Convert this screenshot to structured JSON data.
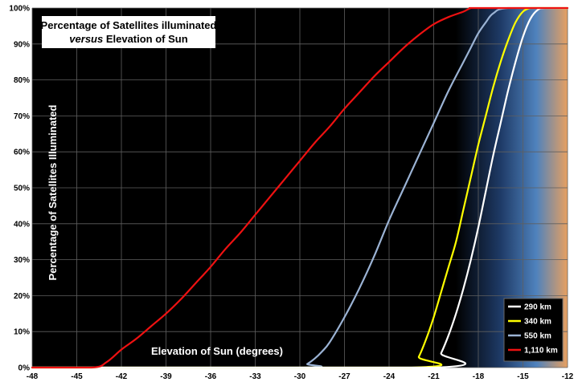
{
  "chart_data": {
    "type": "line",
    "title_line1": "Percentage of Satellites illuminated",
    "title_line2_emph": "versus",
    "title_line2_rest": " Elevation of Sun",
    "xlabel": "Elevation of Sun (degrees)",
    "ylabel": "Percentage of Satellites Illuminated",
    "xlim": [
      -48,
      -12
    ],
    "ylim": [
      0,
      100
    ],
    "xticks": [
      -48,
      -45,
      -42,
      -39,
      -36,
      -33,
      -30,
      -27,
      -24,
      -21,
      -18,
      -15,
      -12
    ],
    "yticks": [
      0,
      10,
      20,
      30,
      40,
      50,
      60,
      70,
      80,
      90,
      100
    ],
    "ytick_suffix": "%",
    "grid": true,
    "legend_position": "bottom-right",
    "background_color": "#000000",
    "twilight_gradient": [
      "#000000",
      "#1e3a66",
      "#4f82bd",
      "#e8a060"
    ],
    "series": [
      {
        "name": "290 km",
        "color": "#ffffff",
        "x": [
          -48,
          -21,
          -20.5,
          -20,
          -19.5,
          -19,
          -18.5,
          -18,
          -17.5,
          -17,
          -16.5,
          -16,
          -15.5,
          -15,
          -14.5,
          -14,
          -13.5,
          -12
        ],
        "y": [
          0,
          0,
          4,
          9,
          15,
          22,
          30,
          39,
          49,
          59,
          68,
          77,
          85,
          92,
          97,
          99.5,
          100,
          100
        ]
      },
      {
        "name": "340 km",
        "color": "#ffff00",
        "x": [
          -48,
          -22.5,
          -22,
          -21.5,
          -21,
          -20.5,
          -20,
          -19.5,
          -19,
          -18.5,
          -18,
          -17.5,
          -17,
          -16.5,
          -16,
          -15.5,
          -15,
          -14.5,
          -14,
          -12
        ],
        "y": [
          0,
          0,
          3,
          8,
          14,
          21,
          28,
          35,
          44,
          53,
          62,
          70,
          78,
          85,
          91,
          96,
          99,
          100,
          100,
          100
        ]
      },
      {
        "name": "550 km",
        "color": "#9bb3d4",
        "x": [
          -48,
          -30,
          -29.5,
          -29,
          -28.5,
          -28,
          -27,
          -26,
          -25,
          -24,
          -23,
          -22,
          -21,
          -20,
          -19,
          -18.5,
          -18,
          -17.5,
          -17,
          -16,
          -12
        ],
        "y": [
          0,
          0,
          1,
          2.5,
          4.5,
          7,
          14,
          22,
          31,
          41,
          50,
          59,
          68,
          77,
          85,
          89,
          93,
          96,
          98.5,
          100,
          100
        ]
      },
      {
        "name": "1,110 km",
        "color": "#ee1111",
        "x": [
          -48,
          -44,
          -43,
          -42,
          -41,
          -40,
          -39,
          -38,
          -37,
          -36,
          -35,
          -34,
          -33,
          -32,
          -31,
          -30,
          -29,
          -28,
          -27,
          -26,
          -25,
          -24,
          -23,
          -22,
          -21,
          -20,
          -19,
          -18.5,
          -18,
          -12
        ],
        "y": [
          0,
          0,
          1.5,
          5,
          8,
          11.5,
          15,
          19,
          23.5,
          28,
          33,
          37.5,
          42.5,
          47.5,
          52.5,
          57.5,
          62.5,
          67,
          72,
          76.5,
          81,
          85,
          89,
          92.5,
          95.5,
          97.5,
          99,
          100,
          100,
          100
        ]
      }
    ]
  }
}
